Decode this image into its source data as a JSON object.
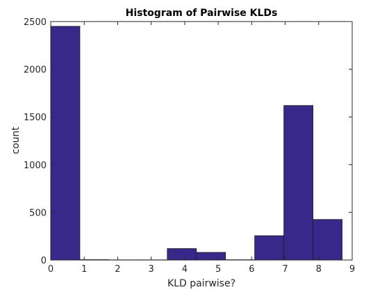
{
  "chart_data": {
    "type": "bar",
    "title": "Histogram of Pairwise KLDs",
    "xlabel": "KLD pairwise?",
    "ylabel": "count",
    "xlim": [
      0,
      9
    ],
    "ylim": [
      0,
      2500
    ],
    "xticks": [
      0,
      1,
      2,
      3,
      4,
      5,
      6,
      7,
      8,
      9
    ],
    "yticks": [
      0,
      500,
      1000,
      1500,
      2000,
      2500
    ],
    "bin_edges": [
      0,
      0.87,
      1.74,
      2.61,
      3.48,
      4.35,
      5.22,
      6.09,
      6.96,
      7.83,
      8.7
    ],
    "values": [
      2450,
      4,
      2,
      2,
      120,
      80,
      3,
      255,
      1620,
      425
    ],
    "grid": false,
    "bar_color": "#38288a",
    "edge_color": "#1a1a1a"
  }
}
